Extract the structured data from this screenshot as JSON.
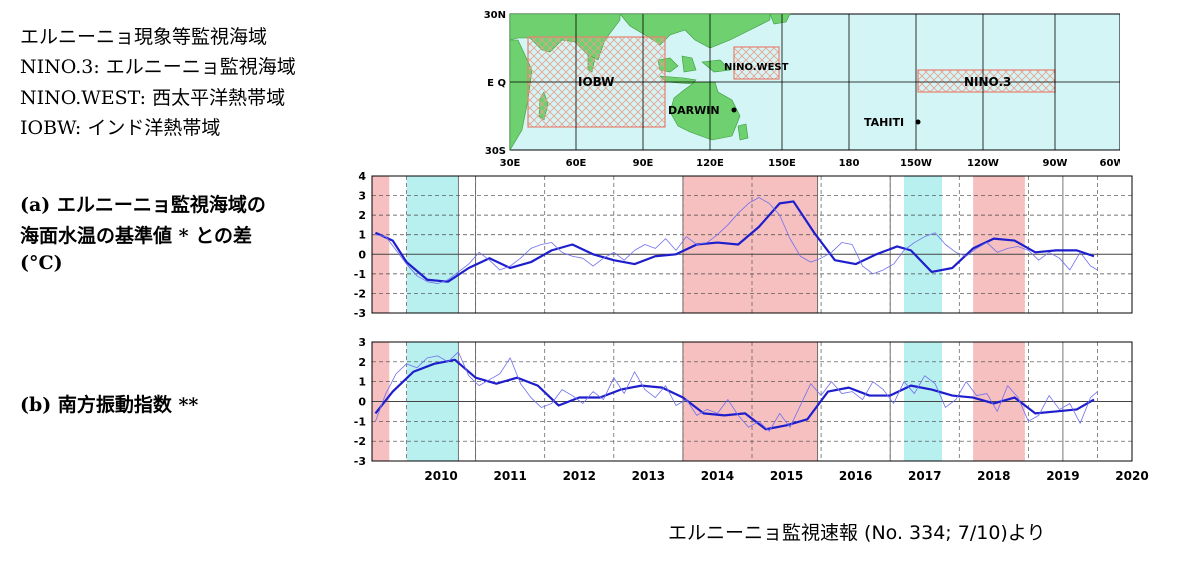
{
  "legend_text": {
    "line1": "エルニーニョ現象等監視海域",
    "line2": "NINO.3: エルニーニョ監視海域",
    "line3": "NINO.WEST: 西太平洋熱帯域",
    "line4": "IOBW: インド洋熱帯域"
  },
  "panel_a_label": {
    "line1": "(a) エルニーニョ監視海域の",
    "line2": "海面水温の基準値 * との差",
    "line3": "(°C)"
  },
  "panel_b_label": "(b) 南方振動指数 **",
  "source": "エルニーニョ監視速報 (No. 334; 7/10)より",
  "map": {
    "lat_labels": [
      "30N",
      "E Q",
      "30S"
    ],
    "lon_labels": [
      "30E",
      "60E",
      "90E",
      "120E",
      "150E",
      "180",
      "150W",
      "120W",
      "90W",
      "60W"
    ],
    "regions": [
      "IOBW",
      "NINO.WEST",
      "NINO.3"
    ],
    "stations": [
      "DARWIN",
      "TAHITI"
    ],
    "colors": {
      "ocean": "#d4f5f5",
      "land": "#6fd06f",
      "region": "#e88070"
    }
  },
  "chart_data": [
    {
      "type": "line",
      "panel": "a",
      "ylim": [
        -3,
        4
      ],
      "yticks": [
        "4",
        "3",
        "2",
        "1",
        "0",
        "-1",
        "-2",
        "-3"
      ],
      "xlim": [
        2009.5,
        2020.5
      ],
      "series": [
        {
          "style": "running-mean",
          "x": [
            2009.55,
            2009.8,
            2010.0,
            2010.3,
            2010.6,
            2010.9,
            2011.2,
            2011.5,
            2011.8,
            2012.1,
            2012.4,
            2012.7,
            2013.0,
            2013.3,
            2013.6,
            2013.9,
            2014.2,
            2014.5,
            2014.8,
            2015.1,
            2015.4,
            2015.6,
            2015.9,
            2016.2,
            2016.5,
            2016.8,
            2017.1,
            2017.3,
            2017.6,
            2017.9,
            2018.2,
            2018.5,
            2018.8,
            2019.1,
            2019.4,
            2019.7,
            2019.95
          ],
          "values": [
            1.1,
            0.7,
            -0.4,
            -1.3,
            -1.4,
            -0.7,
            -0.2,
            -0.7,
            -0.4,
            0.2,
            0.5,
            0.0,
            -0.3,
            -0.5,
            -0.1,
            0.0,
            0.5,
            0.6,
            0.5,
            1.4,
            2.6,
            2.7,
            1.1,
            -0.3,
            -0.5,
            0.0,
            0.4,
            0.2,
            -0.9,
            -0.7,
            0.3,
            0.8,
            0.7,
            0.1,
            0.2,
            0.2,
            -0.1
          ]
        },
        {
          "style": "monthly",
          "x": [
            2009.55,
            2009.7,
            2009.85,
            2010.0,
            2010.15,
            2010.3,
            2010.45,
            2010.6,
            2010.75,
            2010.9,
            2011.05,
            2011.2,
            2011.35,
            2011.5,
            2011.65,
            2011.8,
            2011.95,
            2012.1,
            2012.25,
            2012.4,
            2012.55,
            2012.7,
            2012.85,
            2013.0,
            2013.15,
            2013.3,
            2013.45,
            2013.6,
            2013.75,
            2013.9,
            2014.05,
            2014.2,
            2014.35,
            2014.5,
            2014.65,
            2014.8,
            2014.95,
            2015.1,
            2015.25,
            2015.4,
            2015.55,
            2015.7,
            2015.85,
            2016.0,
            2016.15,
            2016.3,
            2016.45,
            2016.6,
            2016.75,
            2016.9,
            2017.05,
            2017.2,
            2017.35,
            2017.5,
            2017.65,
            2017.8,
            2017.95,
            2018.1,
            2018.25,
            2018.4,
            2018.55,
            2018.7,
            2018.85,
            2019.0,
            2019.15,
            2019.3,
            2019.45,
            2019.6,
            2019.75,
            2019.9,
            2020.0
          ],
          "values": [
            1.0,
            0.9,
            0.2,
            -0.5,
            -1.1,
            -1.4,
            -1.5,
            -1.3,
            -0.9,
            -0.5,
            0.1,
            -0.3,
            -0.8,
            -0.6,
            -0.2,
            0.3,
            0.5,
            0.6,
            0.1,
            -0.1,
            -0.2,
            -0.6,
            -0.2,
            0.1,
            -0.3,
            0.2,
            0.5,
            0.3,
            0.8,
            0.2,
            0.9,
            0.5,
            0.6,
            1.0,
            1.5,
            2.1,
            2.6,
            2.9,
            2.6,
            2.0,
            0.8,
            -0.1,
            -0.4,
            -0.2,
            0.1,
            0.6,
            0.5,
            -0.6,
            -1.0,
            -0.8,
            -0.5,
            0.2,
            0.6,
            0.9,
            1.1,
            0.5,
            0.1,
            -0.1,
            0.3,
            0.6,
            0.1,
            0.3,
            0.4,
            0.2,
            -0.3,
            0.1,
            -0.2,
            -0.8,
            0.1,
            -0.6,
            -0.8
          ]
        }
      ],
      "shading": {
        "el_nino": [
          [
            2009.5,
            2009.75
          ],
          [
            2014.0,
            2015.95
          ],
          [
            2018.2,
            2018.95
          ]
        ],
        "la_nina": [
          [
            2010.0,
            2010.75
          ],
          [
            2017.2,
            2017.75
          ]
        ],
        "colors": {
          "el_nino": "#f7c0c0",
          "la_nina": "#b8f0f0"
        }
      }
    },
    {
      "type": "line",
      "panel": "b",
      "ylim": [
        -3,
        3
      ],
      "yticks": [
        "3",
        "2",
        "1",
        "0",
        "-1",
        "-2",
        "-3"
      ],
      "xlim": [
        2009.5,
        2020.5
      ],
      "xticks": [
        "2010",
        "2011",
        "2012",
        "2013",
        "2014",
        "2015",
        "2016",
        "2017",
        "2018",
        "2019",
        "2020"
      ],
      "series": [
        {
          "style": "running-mean",
          "x": [
            2009.55,
            2009.8,
            2010.1,
            2010.4,
            2010.7,
            2011.0,
            2011.3,
            2011.6,
            2011.9,
            2012.2,
            2012.5,
            2012.8,
            2013.1,
            2013.4,
            2013.7,
            2014.0,
            2014.3,
            2014.6,
            2014.9,
            2015.2,
            2015.5,
            2015.8,
            2016.1,
            2016.4,
            2016.7,
            2017.0,
            2017.3,
            2017.6,
            2017.9,
            2018.2,
            2018.5,
            2018.8,
            2019.1,
            2019.4,
            2019.7,
            2019.95
          ],
          "values": [
            -0.6,
            0.5,
            1.5,
            1.9,
            2.1,
            1.2,
            0.9,
            1.2,
            0.8,
            -0.2,
            0.2,
            0.2,
            0.6,
            0.8,
            0.7,
            0.2,
            -0.6,
            -0.7,
            -0.6,
            -1.4,
            -1.2,
            -0.9,
            0.5,
            0.7,
            0.3,
            0.3,
            0.8,
            0.6,
            0.3,
            0.2,
            -0.1,
            0.2,
            -0.6,
            -0.5,
            -0.4,
            0.1
          ]
        },
        {
          "style": "monthly",
          "x": [
            2009.55,
            2009.7,
            2009.85,
            2010.0,
            2010.15,
            2010.3,
            2010.45,
            2010.6,
            2010.75,
            2010.9,
            2011.05,
            2011.2,
            2011.35,
            2011.5,
            2011.65,
            2011.8,
            2011.95,
            2012.1,
            2012.25,
            2012.4,
            2012.55,
            2012.7,
            2012.85,
            2013.0,
            2013.15,
            2013.3,
            2013.45,
            2013.6,
            2013.75,
            2013.9,
            2014.05,
            2014.2,
            2014.35,
            2014.5,
            2014.65,
            2014.8,
            2014.95,
            2015.1,
            2015.25,
            2015.4,
            2015.55,
            2015.7,
            2015.85,
            2016.0,
            2016.15,
            2016.3,
            2016.45,
            2016.6,
            2016.75,
            2016.9,
            2017.05,
            2017.2,
            2017.35,
            2017.5,
            2017.65,
            2017.8,
            2017.95,
            2018.1,
            2018.25,
            2018.4,
            2018.55,
            2018.7,
            2018.85,
            2019.0,
            2019.15,
            2019.3,
            2019.45,
            2019.6,
            2019.75,
            2019.9,
            2020.0
          ],
          "values": [
            -1.0,
            0.4,
            1.4,
            1.9,
            1.7,
            2.2,
            2.3,
            2.0,
            2.5,
            1.3,
            0.8,
            1.1,
            1.4,
            2.2,
            0.9,
            0.2,
            -0.3,
            -0.1,
            0.6,
            0.3,
            -0.1,
            0.5,
            0.1,
            1.2,
            0.4,
            1.5,
            0.6,
            0.2,
            0.8,
            -0.2,
            0.1,
            -0.7,
            -0.4,
            -0.6,
            0.1,
            -0.7,
            -1.3,
            -1.0,
            -1.5,
            -0.6,
            -1.3,
            -0.2,
            0.9,
            0.3,
            1.0,
            0.4,
            0.5,
            0.1,
            1.0,
            0.6,
            -0.1,
            1.0,
            0.4,
            1.3,
            0.9,
            -0.3,
            0.1,
            1.0,
            0.3,
            0.4,
            -0.5,
            0.8,
            0.2,
            -1.0,
            -0.7,
            0.3,
            -0.4,
            -0.1,
            -1.1,
            0.2,
            0.5
          ]
        }
      ],
      "shading": {
        "el_nino": [
          [
            2009.5,
            2009.75
          ],
          [
            2014.0,
            2015.95
          ],
          [
            2018.2,
            2018.95
          ]
        ],
        "la_nina": [
          [
            2010.0,
            2010.75
          ],
          [
            2017.2,
            2017.75
          ]
        ],
        "colors": {
          "el_nino": "#f7c0c0",
          "la_nina": "#b8f0f0"
        }
      }
    }
  ]
}
